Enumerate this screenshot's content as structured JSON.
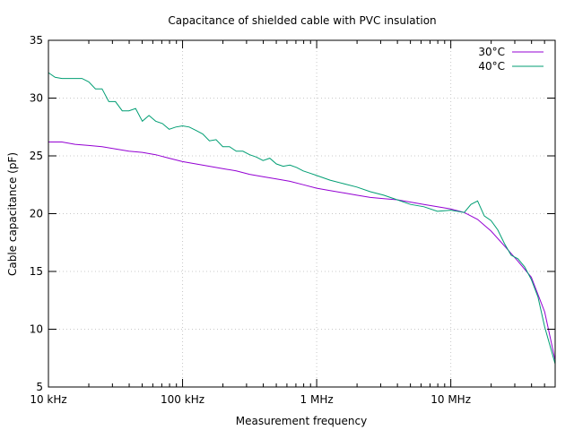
{
  "chart_data": {
    "type": "line",
    "title": "Capacitance of shielded cable with PVC insulation",
    "xlabel": "Measurement frequency",
    "ylabel": "Cable capacitance (pF)",
    "xscale": "log",
    "xlim": [
      10000,
      60000000
    ],
    "ylim": [
      5,
      35
    ],
    "grid": true,
    "legend_position": "top-right",
    "x_ticks": [
      {
        "value": 10000,
        "label": "10 kHz"
      },
      {
        "value": 100000,
        "label": "100 kHz"
      },
      {
        "value": 1000000,
        "label": "1 MHz"
      },
      {
        "value": 10000000,
        "label": "10 MHz"
      }
    ],
    "y_ticks": [
      5,
      10,
      15,
      20,
      25,
      30,
      35
    ],
    "series": [
      {
        "name": "30°C",
        "color": "#9400d3",
        "points": [
          [
            10000,
            26.2
          ],
          [
            12600,
            26.2
          ],
          [
            15800,
            26.0
          ],
          [
            20000,
            25.9
          ],
          [
            25100,
            25.8
          ],
          [
            31600,
            25.6
          ],
          [
            39800,
            25.4
          ],
          [
            50100,
            25.3
          ],
          [
            63100,
            25.1
          ],
          [
            79400,
            24.8
          ],
          [
            100000,
            24.5
          ],
          [
            125900,
            24.3
          ],
          [
            158500,
            24.1
          ],
          [
            199500,
            23.9
          ],
          [
            251200,
            23.7
          ],
          [
            316200,
            23.4
          ],
          [
            398100,
            23.2
          ],
          [
            501200,
            23.0
          ],
          [
            631000,
            22.8
          ],
          [
            794300,
            22.5
          ],
          [
            1000000,
            22.2
          ],
          [
            1259000,
            22.0
          ],
          [
            1585000,
            21.8
          ],
          [
            1995000,
            21.6
          ],
          [
            2512000,
            21.4
          ],
          [
            3162000,
            21.3
          ],
          [
            3981000,
            21.2
          ],
          [
            5012000,
            21.0
          ],
          [
            6310000,
            20.8
          ],
          [
            7943000,
            20.6
          ],
          [
            10000000,
            20.4
          ],
          [
            12590000,
            20.1
          ],
          [
            15850000,
            19.5
          ],
          [
            19950000,
            18.5
          ],
          [
            25120000,
            17.2
          ],
          [
            31620000,
            15.9
          ],
          [
            39810000,
            14.5
          ],
          [
            50120000,
            11.5
          ],
          [
            60000000,
            7.3
          ]
        ]
      },
      {
        "name": "40°C",
        "color": "#009e73",
        "points": [
          [
            10000,
            32.2
          ],
          [
            11200,
            31.8
          ],
          [
            12600,
            31.7
          ],
          [
            15800,
            31.7
          ],
          [
            17800,
            31.7
          ],
          [
            20000,
            31.4
          ],
          [
            22400,
            30.8
          ],
          [
            25100,
            30.8
          ],
          [
            28200,
            29.7
          ],
          [
            31600,
            29.7
          ],
          [
            35500,
            28.9
          ],
          [
            39800,
            28.9
          ],
          [
            44700,
            29.1
          ],
          [
            50100,
            28.0
          ],
          [
            56200,
            28.5
          ],
          [
            63100,
            28.0
          ],
          [
            70800,
            27.8
          ],
          [
            79400,
            27.3
          ],
          [
            89100,
            27.5
          ],
          [
            100000,
            27.6
          ],
          [
            112200,
            27.5
          ],
          [
            125900,
            27.2
          ],
          [
            141300,
            26.9
          ],
          [
            158500,
            26.3
          ],
          [
            177800,
            26.4
          ],
          [
            199500,
            25.8
          ],
          [
            223900,
            25.8
          ],
          [
            251200,
            25.4
          ],
          [
            281800,
            25.4
          ],
          [
            316200,
            25.1
          ],
          [
            354800,
            24.9
          ],
          [
            398100,
            24.6
          ],
          [
            446700,
            24.8
          ],
          [
            501200,
            24.3
          ],
          [
            562300,
            24.1
          ],
          [
            631000,
            24.2
          ],
          [
            708000,
            24.0
          ],
          [
            794300,
            23.7
          ],
          [
            891300,
            23.5
          ],
          [
            1000000,
            23.3
          ],
          [
            1259000,
            22.9
          ],
          [
            1585000,
            22.6
          ],
          [
            1995000,
            22.3
          ],
          [
            2512000,
            21.9
          ],
          [
            3162000,
            21.6
          ],
          [
            3981000,
            21.2
          ],
          [
            5012000,
            20.8
          ],
          [
            6310000,
            20.6
          ],
          [
            7943000,
            20.2
          ],
          [
            10000000,
            20.3
          ],
          [
            12590000,
            20.1
          ],
          [
            14130000,
            20.8
          ],
          [
            15850000,
            21.1
          ],
          [
            17780000,
            19.8
          ],
          [
            19950000,
            19.4
          ],
          [
            22390000,
            18.6
          ],
          [
            25120000,
            17.4
          ],
          [
            28180000,
            16.4
          ],
          [
            31620000,
            16.1
          ],
          [
            35480000,
            15.4
          ],
          [
            39810000,
            14.3
          ],
          [
            44670000,
            12.8
          ],
          [
            50120000,
            10.2
          ],
          [
            60000000,
            7.0
          ]
        ]
      }
    ]
  }
}
